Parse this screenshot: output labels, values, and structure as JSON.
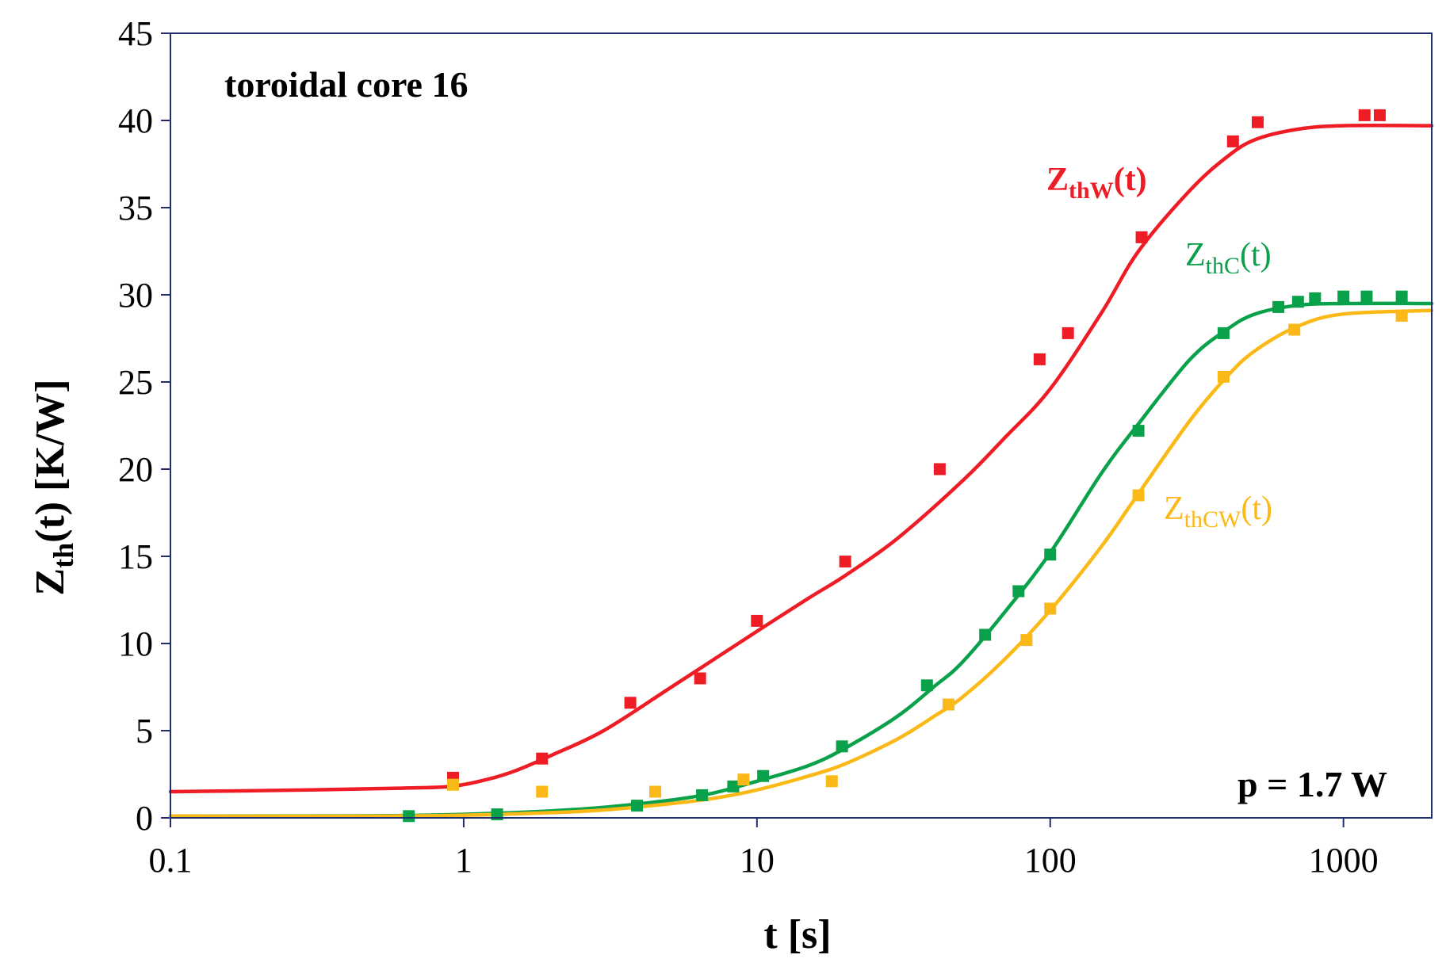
{
  "chart_data": {
    "type": "scatter",
    "title": "toroidal core 16",
    "annotation": "p = 1.7 W",
    "xlabel": "t [s]",
    "ylabel": "Z",
    "ylabel_sub": "th",
    "ylabel_suffix": "(t) [K/W]",
    "x_scale": "log",
    "xlim": [
      0.1,
      2000
    ],
    "ylim": [
      0,
      45
    ],
    "x_ticks": [
      0.1,
      1,
      10,
      100,
      1000
    ],
    "x_tick_labels": [
      "0.1",
      "1",
      "10",
      "100",
      "1000"
    ],
    "y_ticks": [
      0,
      5,
      10,
      15,
      20,
      25,
      30,
      35,
      40,
      45
    ],
    "y_tick_labels": [
      "0",
      "5",
      "10",
      "15",
      "20",
      "25",
      "30",
      "35",
      "40",
      "45"
    ],
    "series": [
      {
        "name": "ZthW(t)",
        "label_main": "Z",
        "label_sub": "thW",
        "label_tail": "(t)",
        "label_bold": true,
        "color": "#ee1c25",
        "points": [
          [
            0.92,
            2.3
          ],
          [
            1.85,
            3.4
          ],
          [
            3.7,
            6.6
          ],
          [
            6.4,
            8.0
          ],
          [
            10,
            11.3
          ],
          [
            20,
            14.7
          ],
          [
            42,
            20.0
          ],
          [
            92,
            26.3
          ],
          [
            115,
            27.8
          ],
          [
            205,
            33.3
          ],
          [
            420,
            38.8
          ],
          [
            510,
            39.9
          ],
          [
            1180,
            40.3
          ],
          [
            1330,
            40.3
          ]
        ],
        "curve": [
          [
            0.1,
            1.5
          ],
          [
            0.3,
            1.6
          ],
          [
            0.6,
            1.7
          ],
          [
            0.9,
            1.8
          ],
          [
            1.2,
            2.2
          ],
          [
            1.5,
            2.7
          ],
          [
            2,
            3.6
          ],
          [
            3,
            5.0
          ],
          [
            5,
            7.4
          ],
          [
            7,
            9.0
          ],
          [
            10,
            10.7
          ],
          [
            15,
            12.6
          ],
          [
            20,
            13.9
          ],
          [
            30,
            16.0
          ],
          [
            50,
            19.3
          ],
          [
            70,
            21.8
          ],
          [
            100,
            24.6
          ],
          [
            150,
            29.0
          ],
          [
            200,
            32.5
          ],
          [
            300,
            36.0
          ],
          [
            400,
            37.9
          ],
          [
            500,
            38.9
          ],
          [
            700,
            39.5
          ],
          [
            1000,
            39.7
          ],
          [
            2000,
            39.7
          ]
        ]
      },
      {
        "name": "ZthC(t)",
        "label_main": "Z",
        "label_sub": "thC",
        "label_tail": "(t)",
        "label_bold": false,
        "color": "#0aa14b",
        "points": [
          [
            0.65,
            0.1
          ],
          [
            1.3,
            0.2
          ],
          [
            3.9,
            0.7
          ],
          [
            6.5,
            1.3
          ],
          [
            8.3,
            1.8
          ],
          [
            10.5,
            2.4
          ],
          [
            19.5,
            4.1
          ],
          [
            38,
            7.6
          ],
          [
            60,
            10.5
          ],
          [
            78,
            13.0
          ],
          [
            100,
            15.1
          ],
          [
            200,
            22.2
          ],
          [
            390,
            27.8
          ],
          [
            600,
            29.3
          ],
          [
            700,
            29.6
          ],
          [
            800,
            29.8
          ],
          [
            1000,
            29.9
          ],
          [
            1200,
            29.9
          ],
          [
            1580,
            29.9
          ]
        ],
        "curve": [
          [
            0.1,
            0.1
          ],
          [
            0.5,
            0.12
          ],
          [
            1,
            0.2
          ],
          [
            2,
            0.4
          ],
          [
            3,
            0.6
          ],
          [
            5,
            1.0
          ],
          [
            7,
            1.4
          ],
          [
            10,
            2.1
          ],
          [
            15,
            3.0
          ],
          [
            20,
            4.0
          ],
          [
            30,
            5.8
          ],
          [
            40,
            7.5
          ],
          [
            50,
            8.9
          ],
          [
            70,
            11.8
          ],
          [
            100,
            15.2
          ],
          [
            150,
            19.8
          ],
          [
            200,
            22.6
          ],
          [
            300,
            26.3
          ],
          [
            400,
            28.0
          ],
          [
            500,
            28.9
          ],
          [
            700,
            29.4
          ],
          [
            1000,
            29.5
          ],
          [
            2000,
            29.5
          ]
        ]
      },
      {
        "name": "ZthCW(t)",
        "label_main": "Z",
        "label_sub": "thCW",
        "label_tail": "(t)",
        "label_bold": false,
        "color": "#fbb917",
        "points": [
          [
            0.92,
            1.9
          ],
          [
            1.85,
            1.5
          ],
          [
            4.5,
            1.5
          ],
          [
            9.0,
            2.2
          ],
          [
            18,
            2.1
          ],
          [
            45,
            6.5
          ],
          [
            83,
            10.2
          ],
          [
            100,
            12.0
          ],
          [
            200,
            18.5
          ],
          [
            390,
            25.3
          ],
          [
            680,
            28.0
          ],
          [
            1580,
            28.8
          ]
        ],
        "curve": [
          [
            0.1,
            0.1
          ],
          [
            0.5,
            0.1
          ],
          [
            1,
            0.15
          ],
          [
            2,
            0.3
          ],
          [
            3,
            0.45
          ],
          [
            5,
            0.8
          ],
          [
            7,
            1.1
          ],
          [
            10,
            1.6
          ],
          [
            15,
            2.4
          ],
          [
            20,
            3.1
          ],
          [
            30,
            4.5
          ],
          [
            40,
            5.8
          ],
          [
            50,
            6.9
          ],
          [
            70,
            9.1
          ],
          [
            100,
            11.9
          ],
          [
            150,
            15.6
          ],
          [
            200,
            18.6
          ],
          [
            300,
            22.8
          ],
          [
            400,
            25.3
          ],
          [
            500,
            26.8
          ],
          [
            700,
            28.2
          ],
          [
            1000,
            28.9
          ],
          [
            2000,
            29.1
          ]
        ]
      }
    ]
  }
}
